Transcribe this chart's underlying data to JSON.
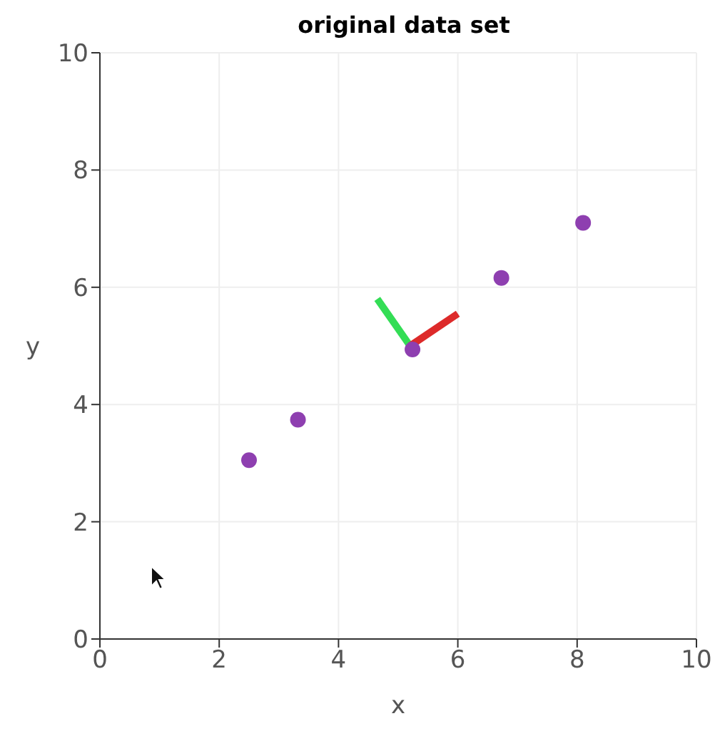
{
  "chart_data": {
    "type": "scatter",
    "title": "original data set",
    "xlabel": "x",
    "ylabel": "y",
    "xlim": [
      0,
      10
    ],
    "ylim": [
      0,
      10
    ],
    "xticks": [
      0,
      2,
      4,
      6,
      8,
      10
    ],
    "yticks": [
      0,
      2,
      4,
      6,
      8,
      10
    ],
    "grid": true,
    "series": [
      {
        "color": "#8e3fb0",
        "x": [
          2.5,
          3.32,
          5.24,
          6.73,
          8.1
        ],
        "values": [
          3.05,
          3.74,
          4.94,
          6.16,
          7.1
        ]
      },
      {
        "type": "line",
        "color": "#33dd55",
        "x": [
          5.2,
          4.65
        ],
        "values": [
          5.0,
          5.8
        ]
      },
      {
        "type": "line",
        "color": "#dd2a2a",
        "x": [
          5.2,
          6.0
        ],
        "values": [
          5.0,
          5.55
        ]
      }
    ]
  }
}
